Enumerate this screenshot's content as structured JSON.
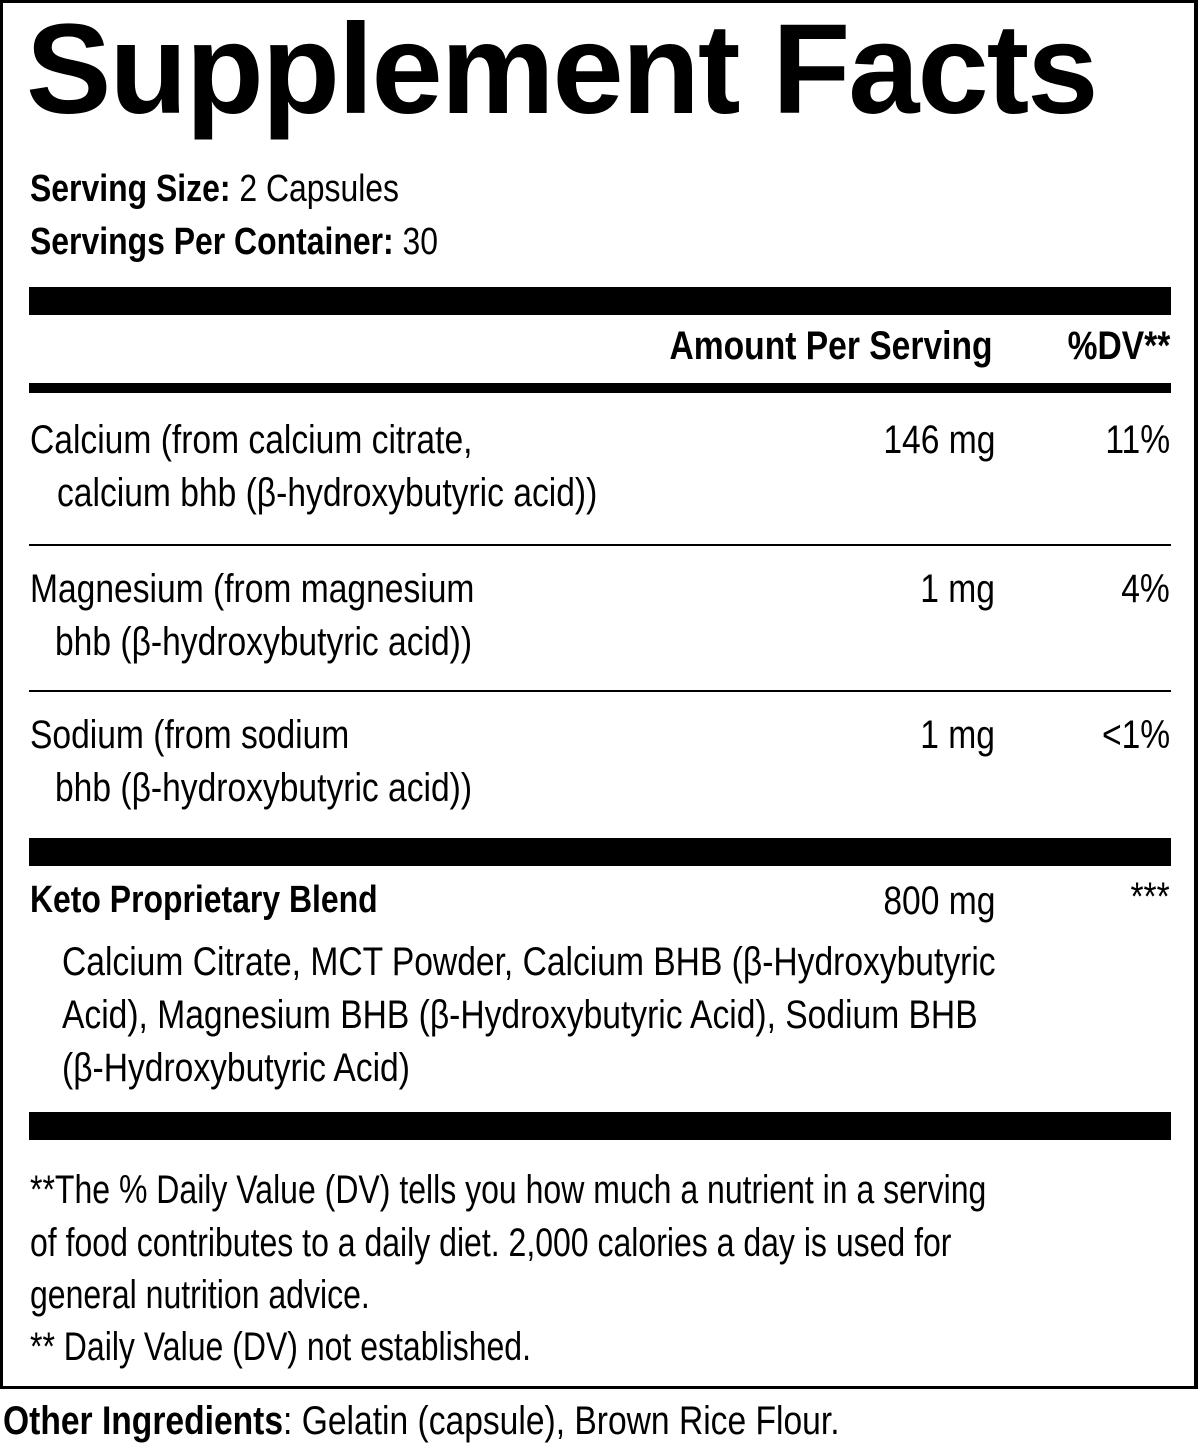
{
  "title": "Supplement Facts",
  "serving": {
    "size_label": "Serving Size:",
    "size_value": " 2 Capsules",
    "per_container_label": "Servings Per Container:",
    "per_container_value": " 30"
  },
  "header": {
    "amount": "Amount Per Serving",
    "dv": "%DV**"
  },
  "rows": [
    {
      "line1": "Calcium (from calcium citrate,",
      "line2": "calcium bhb (β-hydroxybutyric acid))",
      "amount": "146 mg",
      "dv": "11%"
    },
    {
      "line1": "Magnesium (from magnesium",
      "line2": "bhb (β-hydroxybutyric acid))",
      "amount": "1 mg",
      "dv": "4%"
    },
    {
      "line1": "Sodium (from sodium",
      "line2": "bhb (β-hydroxybutyric acid))",
      "amount": "1 mg",
      "dv": "<1%"
    }
  ],
  "blend": {
    "name": "Keto Proprietary Blend",
    "amount": "800 mg",
    "dv": "***",
    "lines": [
      "Calcium Citrate, MCT Powder, Calcium BHB (β-Hydroxybutyric",
      "Acid), Magnesium BHB (β-Hydroxybutyric Acid), Sodium BHB",
      "(β-Hydroxybutyric Acid)"
    ]
  },
  "footnotes": [
    "**The % Daily Value (DV) tells you how much a nutrient in a serving",
    "of food contributes to a daily diet. 2,000 calories a day is used for",
    "general nutrition advice.",
    "** Daily Value (DV) not established."
  ],
  "other": {
    "label": "Other Ingredients",
    "value": ": Gelatin (capsule), Brown Rice Flour."
  }
}
